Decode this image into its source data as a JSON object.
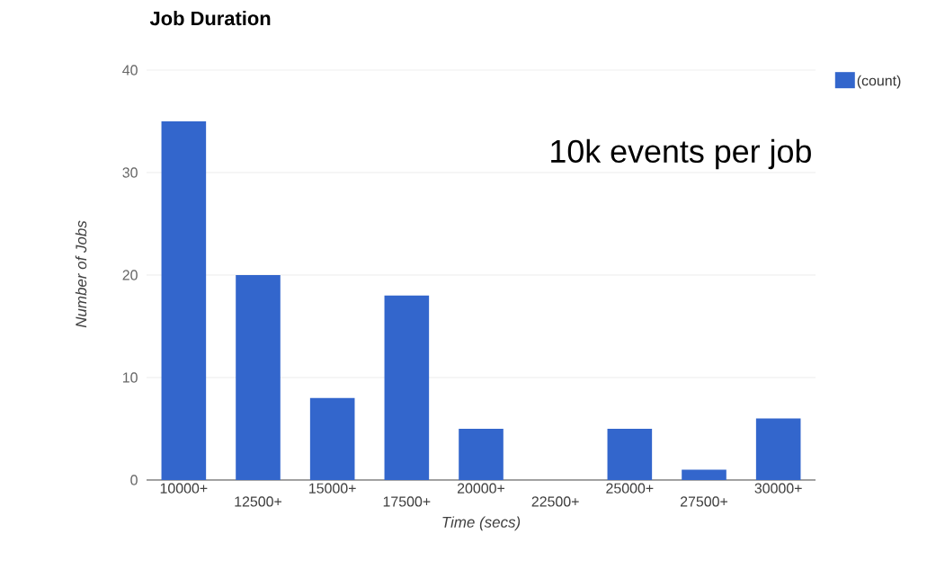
{
  "chart_data": {
    "type": "bar",
    "title": "Job Duration",
    "xlabel": "Time (secs)",
    "ylabel": "Number of Jobs",
    "categories": [
      "10000+",
      "12500+",
      "15000+",
      "17500+",
      "20000+",
      "22500+",
      "25000+",
      "27500+",
      "30000+"
    ],
    "series": [
      {
        "name": "(count)",
        "color": "#3366cc",
        "values": [
          35,
          20,
          8,
          18,
          5,
          0,
          5,
          1,
          6
        ]
      }
    ],
    "ylim": [
      0,
      40
    ],
    "yticks": [
      0,
      10,
      20,
      30,
      40
    ],
    "grid": "y",
    "legend": "top right",
    "annotations": [
      "10k events per job"
    ]
  }
}
